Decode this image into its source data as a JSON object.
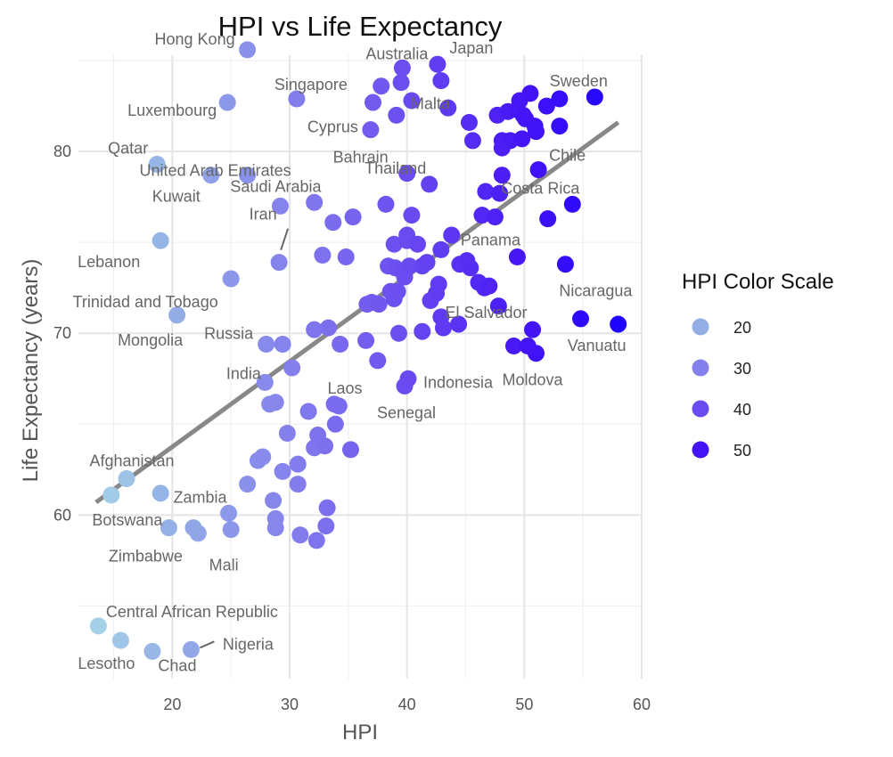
{
  "chart_data": {
    "type": "scatter",
    "title": "HPI vs Life Expectancy",
    "xlabel": "HPI",
    "ylabel": "Life Expectancy (years)",
    "xlim": [
      12,
      60
    ],
    "ylim": [
      51,
      85.3
    ],
    "x_ticks": [
      20,
      30,
      40,
      50,
      60
    ],
    "y_ticks": [
      60,
      70,
      80
    ],
    "grid": true,
    "legend": {
      "title": "HPI Color Scale",
      "placement": "right",
      "items": [
        {
          "label": "20",
          "color": "#94aee6"
        },
        {
          "label": "30",
          "color": "#8480ec"
        },
        {
          "label": "40",
          "color": "#6a4bf0"
        },
        {
          "label": "50",
          "color": "#4514f6"
        }
      ]
    },
    "trend_line": {
      "x": [
        13.5,
        58
      ],
      "y": [
        60.7,
        81.6
      ],
      "color": "#888888"
    },
    "points": [
      {
        "x": 26.4,
        "y": 85.6,
        "label": "Hong Kong"
      },
      {
        "x": 39.6,
        "y": 84.6,
        "label": "Australia"
      },
      {
        "x": 42.6,
        "y": 84.8,
        "label": "Japan"
      },
      {
        "x": 42.9,
        "y": 83.9,
        "label": "Malta"
      },
      {
        "x": 56.0,
        "y": 83.0,
        "label": "Sweden"
      },
      {
        "x": 30.6,
        "y": 82.9,
        "label": "Singapore"
      },
      {
        "x": 24.7,
        "y": 82.7,
        "label": "Luxembourg"
      },
      {
        "x": 36.9,
        "y": 81.2,
        "label": "Cyprus"
      },
      {
        "x": 18.7,
        "y": 79.3,
        "label": "Qatar"
      },
      {
        "x": 26.4,
        "y": 78.7,
        "label": "United Arab Emirates"
      },
      {
        "x": 23.3,
        "y": 78.7,
        "label": "Kuwait"
      },
      {
        "x": 40.0,
        "y": 78.8,
        "label": "Bahrain"
      },
      {
        "x": 41.9,
        "y": 78.2,
        "label": "Thailand"
      },
      {
        "x": 51.2,
        "y": 79.0,
        "label": "Chile"
      },
      {
        "x": 54.1,
        "y": 77.1,
        "label": "Costa Rica"
      },
      {
        "x": 29.2,
        "y": 77.0,
        "label": "Saudi Arabia"
      },
      {
        "x": 29.1,
        "y": 73.9,
        "label": "Iran"
      },
      {
        "x": 19.0,
        "y": 75.1,
        "label": "Lebanon"
      },
      {
        "x": 49.4,
        "y": 74.2,
        "label": "Panama"
      },
      {
        "x": 53.5,
        "y": 73.8,
        "label": "Nicaragua"
      },
      {
        "x": 25.0,
        "y": 73.0,
        "label": "Trinidad and Tobago"
      },
      {
        "x": 20.4,
        "y": 71.0,
        "label": "Mongolia"
      },
      {
        "x": 54.8,
        "y": 70.8,
        "label": "El Salvador"
      },
      {
        "x": 58.0,
        "y": 70.5,
        "label": "Vanuatu"
      },
      {
        "x": 28.0,
        "y": 69.4,
        "label": "Russia"
      },
      {
        "x": 27.9,
        "y": 67.3,
        "label": "India"
      },
      {
        "x": 39.8,
        "y": 67.1,
        "label": "Indonesia"
      },
      {
        "x": 51.0,
        "y": 68.9,
        "label": "Moldova"
      },
      {
        "x": 33.8,
        "y": 66.1,
        "label": "Laos"
      },
      {
        "x": 40.1,
        "y": 67.5,
        "label": "Senegal"
      },
      {
        "x": 16.1,
        "y": 62.0,
        "label": "Afghanistan"
      },
      {
        "x": 14.8,
        "y": 61.1,
        "label": "Botswana"
      },
      {
        "x": 24.8,
        "y": 60.1,
        "label": "Zambia"
      },
      {
        "x": 19.7,
        "y": 59.3,
        "label": "Zimbabwe"
      },
      {
        "x": 25.0,
        "y": 59.2,
        "label": "Mali"
      },
      {
        "x": 13.7,
        "y": 53.9,
        "label": "Central African Republic"
      },
      {
        "x": 21.6,
        "y": 52.6,
        "label": "Nigeria"
      },
      {
        "x": 15.6,
        "y": 53.1,
        "label": "Lesotho"
      },
      {
        "x": 18.3,
        "y": 52.5,
        "label": "Chad"
      },
      {
        "x": 19.0,
        "y": 61.2
      },
      {
        "x": 22.2,
        "y": 59.0
      },
      {
        "x": 21.8,
        "y": 59.3
      },
      {
        "x": 26.4,
        "y": 61.7
      },
      {
        "x": 27.3,
        "y": 63.0
      },
      {
        "x": 27.7,
        "y": 63.2
      },
      {
        "x": 28.3,
        "y": 66.1
      },
      {
        "x": 28.8,
        "y": 66.2
      },
      {
        "x": 28.6,
        "y": 60.8
      },
      {
        "x": 28.8,
        "y": 59.8
      },
      {
        "x": 28.8,
        "y": 59.3
      },
      {
        "x": 29.4,
        "y": 62.4
      },
      {
        "x": 29.4,
        "y": 69.4
      },
      {
        "x": 29.8,
        "y": 64.5
      },
      {
        "x": 30.2,
        "y": 68.1
      },
      {
        "x": 30.7,
        "y": 61.7
      },
      {
        "x": 30.7,
        "y": 62.8
      },
      {
        "x": 30.9,
        "y": 58.9
      },
      {
        "x": 31.6,
        "y": 65.7
      },
      {
        "x": 32.1,
        "y": 63.7
      },
      {
        "x": 32.1,
        "y": 70.2
      },
      {
        "x": 32.1,
        "y": 77.2
      },
      {
        "x": 32.3,
        "y": 58.6
      },
      {
        "x": 32.4,
        "y": 64.4
      },
      {
        "x": 32.8,
        "y": 74.3
      },
      {
        "x": 33.0,
        "y": 63.8
      },
      {
        "x": 33.1,
        "y": 59.4
      },
      {
        "x": 33.2,
        "y": 60.4
      },
      {
        "x": 33.3,
        "y": 70.3
      },
      {
        "x": 33.7,
        "y": 76.1
      },
      {
        "x": 33.9,
        "y": 65.0
      },
      {
        "x": 34.2,
        "y": 66.0
      },
      {
        "x": 34.3,
        "y": 69.4
      },
      {
        "x": 34.8,
        "y": 74.2
      },
      {
        "x": 35.2,
        "y": 63.6
      },
      {
        "x": 35.4,
        "y": 76.4
      },
      {
        "x": 36.5,
        "y": 69.6
      },
      {
        "x": 36.6,
        "y": 71.6
      },
      {
        "x": 37.0,
        "y": 71.7
      },
      {
        "x": 37.1,
        "y": 82.7
      },
      {
        "x": 37.5,
        "y": 68.5
      },
      {
        "x": 37.6,
        "y": 71.6
      },
      {
        "x": 37.8,
        "y": 83.6
      },
      {
        "x": 38.2,
        "y": 77.1
      },
      {
        "x": 38.4,
        "y": 73.7
      },
      {
        "x": 38.6,
        "y": 72.3
      },
      {
        "x": 38.9,
        "y": 71.9
      },
      {
        "x": 38.9,
        "y": 74.9
      },
      {
        "x": 39.0,
        "y": 73.6
      },
      {
        "x": 39.1,
        "y": 82.0
      },
      {
        "x": 39.2,
        "y": 72.3
      },
      {
        "x": 39.3,
        "y": 70.0
      },
      {
        "x": 39.5,
        "y": 83.8
      },
      {
        "x": 39.6,
        "y": 73.4
      },
      {
        "x": 39.8,
        "y": 73.1
      },
      {
        "x": 40.0,
        "y": 75.1
      },
      {
        "x": 40.0,
        "y": 75.4
      },
      {
        "x": 40.2,
        "y": 73.7
      },
      {
        "x": 40.4,
        "y": 76.5
      },
      {
        "x": 40.4,
        "y": 82.8
      },
      {
        "x": 40.9,
        "y": 74.9
      },
      {
        "x": 41.3,
        "y": 73.7
      },
      {
        "x": 41.3,
        "y": 70.1
      },
      {
        "x": 41.7,
        "y": 73.9
      },
      {
        "x": 42.0,
        "y": 71.8
      },
      {
        "x": 42.5,
        "y": 72.2
      },
      {
        "x": 42.7,
        "y": 72.7
      },
      {
        "x": 42.9,
        "y": 74.6
      },
      {
        "x": 42.9,
        "y": 70.9
      },
      {
        "x": 43.1,
        "y": 70.3
      },
      {
        "x": 43.5,
        "y": 82.4
      },
      {
        "x": 43.8,
        "y": 75.4
      },
      {
        "x": 44.4,
        "y": 70.5
      },
      {
        "x": 44.5,
        "y": 73.8
      },
      {
        "x": 45.1,
        "y": 74.0
      },
      {
        "x": 45.3,
        "y": 81.6
      },
      {
        "x": 45.4,
        "y": 73.6
      },
      {
        "x": 45.6,
        "y": 80.6
      },
      {
        "x": 46.1,
        "y": 72.8
      },
      {
        "x": 46.4,
        "y": 76.5
      },
      {
        "x": 46.6,
        "y": 72.5
      },
      {
        "x": 46.7,
        "y": 77.8
      },
      {
        "x": 47.0,
        "y": 72.6
      },
      {
        "x": 47.5,
        "y": 76.4
      },
      {
        "x": 47.7,
        "y": 82.0
      },
      {
        "x": 47.8,
        "y": 71.5
      },
      {
        "x": 47.9,
        "y": 77.7
      },
      {
        "x": 48.1,
        "y": 78.7
      },
      {
        "x": 48.1,
        "y": 80.6
      },
      {
        "x": 48.1,
        "y": 80.2
      },
      {
        "x": 48.6,
        "y": 82.2
      },
      {
        "x": 48.8,
        "y": 80.6
      },
      {
        "x": 49.1,
        "y": 69.3
      },
      {
        "x": 49.4,
        "y": 82.3
      },
      {
        "x": 49.6,
        "y": 82.8
      },
      {
        "x": 49.8,
        "y": 80.7
      },
      {
        "x": 49.9,
        "y": 82.0
      },
      {
        "x": 50.1,
        "y": 81.8
      },
      {
        "x": 50.3,
        "y": 69.3
      },
      {
        "x": 50.5,
        "y": 83.2
      },
      {
        "x": 50.7,
        "y": 70.2
      },
      {
        "x": 50.9,
        "y": 81.4
      },
      {
        "x": 51.0,
        "y": 81.1
      },
      {
        "x": 52.0,
        "y": 76.3
      },
      {
        "x": 51.9,
        "y": 82.5
      },
      {
        "x": 53.0,
        "y": 82.9
      },
      {
        "x": 53.0,
        "y": 81.4
      }
    ]
  }
}
